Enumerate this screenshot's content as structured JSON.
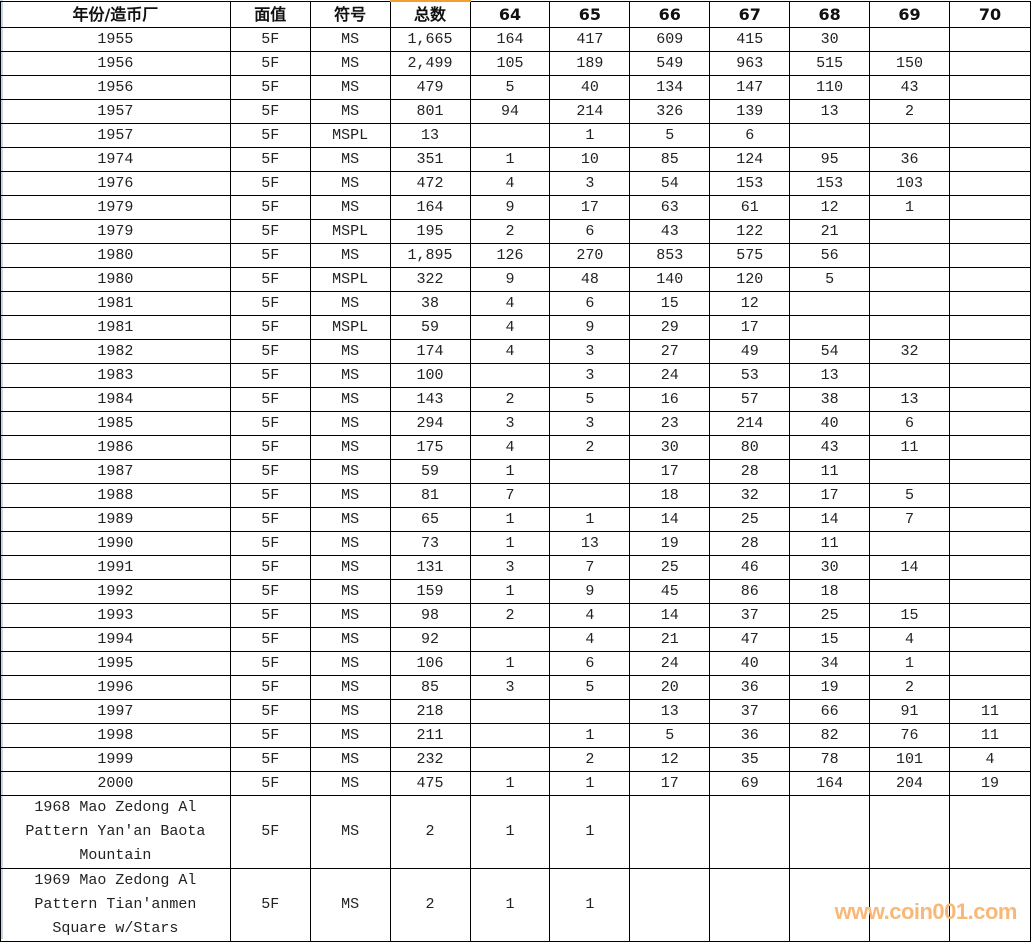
{
  "headers": [
    "年份/造币厂",
    "面值",
    "符号",
    "总数",
    "64",
    "65",
    "66",
    "67",
    "68",
    "69",
    "70"
  ],
  "rows": [
    [
      "1955",
      "5F",
      "MS",
      "1,665",
      "164",
      "417",
      "609",
      "415",
      "30",
      "",
      ""
    ],
    [
      "1956",
      "5F",
      "MS",
      "2,499",
      "105",
      "189",
      "549",
      "963",
      "515",
      "150",
      ""
    ],
    [
      "1956",
      "5F",
      "MS",
      "479",
      "5",
      "40",
      "134",
      "147",
      "110",
      "43",
      ""
    ],
    [
      "1957",
      "5F",
      "MS",
      "801",
      "94",
      "214",
      "326",
      "139",
      "13",
      "2",
      ""
    ],
    [
      "1957",
      "5F",
      "MSPL",
      "13",
      "",
      "1",
      "5",
      "6",
      "",
      "",
      ""
    ],
    [
      "1974",
      "5F",
      "MS",
      "351",
      "1",
      "10",
      "85",
      "124",
      "95",
      "36",
      ""
    ],
    [
      "1976",
      "5F",
      "MS",
      "472",
      "4",
      "3",
      "54",
      "153",
      "153",
      "103",
      ""
    ],
    [
      "1979",
      "5F",
      "MS",
      "164",
      "9",
      "17",
      "63",
      "61",
      "12",
      "1",
      ""
    ],
    [
      "1979",
      "5F",
      "MSPL",
      "195",
      "2",
      "6",
      "43",
      "122",
      "21",
      "",
      ""
    ],
    [
      "1980",
      "5F",
      "MS",
      "1,895",
      "126",
      "270",
      "853",
      "575",
      "56",
      "",
      ""
    ],
    [
      "1980",
      "5F",
      "MSPL",
      "322",
      "9",
      "48",
      "140",
      "120",
      "5",
      "",
      ""
    ],
    [
      "1981",
      "5F",
      "MS",
      "38",
      "4",
      "6",
      "15",
      "12",
      "",
      "",
      ""
    ],
    [
      "1981",
      "5F",
      "MSPL",
      "59",
      "4",
      "9",
      "29",
      "17",
      "",
      "",
      ""
    ],
    [
      "1982",
      "5F",
      "MS",
      "174",
      "4",
      "3",
      "27",
      "49",
      "54",
      "32",
      ""
    ],
    [
      "1983",
      "5F",
      "MS",
      "100",
      "",
      "3",
      "24",
      "53",
      "13",
      "",
      ""
    ],
    [
      "1984",
      "5F",
      "MS",
      "143",
      "2",
      "5",
      "16",
      "57",
      "38",
      "13",
      ""
    ],
    [
      "1985",
      "5F",
      "MS",
      "294",
      "3",
      "3",
      "23",
      "214",
      "40",
      "6",
      ""
    ],
    [
      "1986",
      "5F",
      "MS",
      "175",
      "4",
      "2",
      "30",
      "80",
      "43",
      "11",
      ""
    ],
    [
      "1987",
      "5F",
      "MS",
      "59",
      "1",
      "",
      "17",
      "28",
      "11",
      "",
      ""
    ],
    [
      "1988",
      "5F",
      "MS",
      "81",
      "7",
      "",
      "18",
      "32",
      "17",
      "5",
      ""
    ],
    [
      "1989",
      "5F",
      "MS",
      "65",
      "1",
      "1",
      "14",
      "25",
      "14",
      "7",
      ""
    ],
    [
      "1990",
      "5F",
      "MS",
      "73",
      "1",
      "13",
      "19",
      "28",
      "11",
      "",
      ""
    ],
    [
      "1991",
      "5F",
      "MS",
      "131",
      "3",
      "7",
      "25",
      "46",
      "30",
      "14",
      ""
    ],
    [
      "1992",
      "5F",
      "MS",
      "159",
      "1",
      "9",
      "45",
      "86",
      "18",
      "",
      ""
    ],
    [
      "1993",
      "5F",
      "MS",
      "98",
      "2",
      "4",
      "14",
      "37",
      "25",
      "15",
      ""
    ],
    [
      "1994",
      "5F",
      "MS",
      "92",
      "",
      "4",
      "21",
      "47",
      "15",
      "4",
      ""
    ],
    [
      "1995",
      "5F",
      "MS",
      "106",
      "1",
      "6",
      "24",
      "40",
      "34",
      "1",
      ""
    ],
    [
      "1996",
      "5F",
      "MS",
      "85",
      "3",
      "5",
      "20",
      "36",
      "19",
      "2",
      ""
    ],
    [
      "1997",
      "5F",
      "MS",
      "218",
      "",
      "",
      "13",
      "37",
      "66",
      "91",
      "11"
    ],
    [
      "1998",
      "5F",
      "MS",
      "211",
      "",
      "1",
      "5",
      "36",
      "82",
      "76",
      "11"
    ],
    [
      "1999",
      "5F",
      "MS",
      "232",
      "",
      "2",
      "12",
      "35",
      "78",
      "101",
      "4"
    ],
    [
      "2000",
      "5F",
      "MS",
      "475",
      "1",
      "1",
      "17",
      "69",
      "164",
      "204",
      "19"
    ],
    [
      "1968 Mao Zedong Al\nPattern Yan'an Baota\nMountain",
      "5F",
      "MS",
      "2",
      "1",
      "1",
      "",
      "",
      "",
      "",
      ""
    ],
    [
      "1969 Mao Zedong Al\nPattern Tian'anmen\nSquare w/Stars",
      "5F",
      "MS",
      "2",
      "1",
      "1",
      "",
      "",
      "",
      "",
      ""
    ]
  ],
  "watermark": "www.coin001.com"
}
